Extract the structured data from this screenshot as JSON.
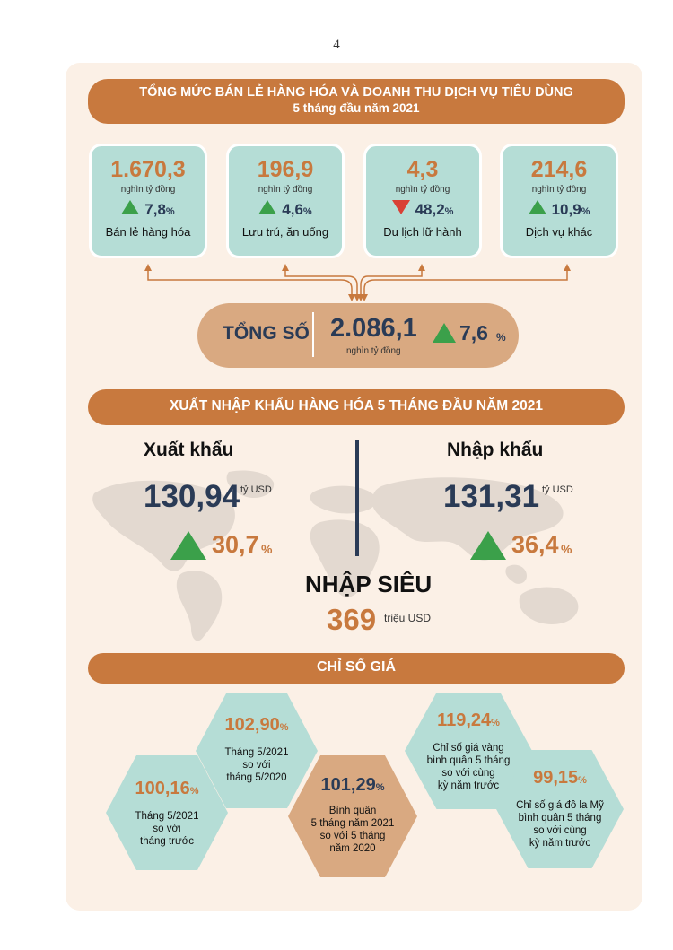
{
  "page_number": "4",
  "retail": {
    "title_line1": "TỔNG MỨC BÁN LẺ HÀNG HÓA VÀ DOANH THU DỊCH VỤ TIÊU DÙNG",
    "title_line2": "5 tháng đầu năm 2021",
    "cards": [
      {
        "value": "1.670,3",
        "unit": "nghìn tỷ đồng",
        "direction": "up",
        "change": "7,8",
        "pct": "%",
        "label": "Bán lẻ hàng hóa"
      },
      {
        "value": "196,9",
        "unit": "nghìn tỷ đồng",
        "direction": "up",
        "change": "4,6",
        "pct": "%",
        "label": "Lưu trú, ăn uống"
      },
      {
        "value": "4,3",
        "unit": "nghìn tỷ đồng",
        "direction": "down",
        "change": "48,2",
        "pct": "%",
        "label": "Du lịch lữ hành"
      },
      {
        "value": "214,6",
        "unit": "nghìn tỷ đồng",
        "direction": "up",
        "change": "10,9",
        "pct": "%",
        "label": "Dịch vụ khác"
      }
    ],
    "total": {
      "label": "TỔNG SỐ",
      "value": "2.086,1",
      "unit": "nghìn tỷ đồng",
      "change": "7,6",
      "pct": "%"
    }
  },
  "trade": {
    "title": "XUẤT NHẬP KHẨU HÀNG HÓA  5 THÁNG ĐẦU NĂM 2021",
    "export": {
      "label": "Xuất khẩu",
      "value": "130,94",
      "unit": "tỷ USD",
      "change": "30,7",
      "pct": "%"
    },
    "import": {
      "label": "Nhập khẩu",
      "value": "131,31",
      "unit": "tỷ USD",
      "change": "36,4",
      "pct": "%"
    },
    "surplus": {
      "label": "NHẬP SIÊU",
      "value": "369",
      "unit": "triệu USD"
    }
  },
  "price": {
    "title": "CHỈ SỐ GIÁ",
    "hexes": [
      {
        "value": "100,16",
        "pct": "%",
        "lines": [
          "Tháng 5/2021",
          "so với",
          "tháng trước"
        ]
      },
      {
        "value": "102,90",
        "pct": "%",
        "lines": [
          "Tháng 5/2021",
          "so với",
          "tháng 5/2020"
        ]
      },
      {
        "value": "101,29",
        "pct": "%",
        "lines": [
          "Bình quân",
          "5 tháng năm 2021",
          "so với 5 tháng",
          "năm 2020"
        ]
      },
      {
        "value": "119,24",
        "pct": "%",
        "lines": [
          "Chỉ số giá vàng",
          "bình quân 5 tháng",
          "so với cùng",
          "kỳ năm trước"
        ]
      },
      {
        "value": "99,15",
        "pct": "%",
        "lines": [
          "Chỉ số giá đô la Mỹ",
          "bình quân 5 tháng",
          "so với cùng",
          "kỳ năm trước"
        ]
      }
    ]
  },
  "colors": {
    "accent": "#c8793e",
    "teal": "#b5ddd6",
    "navy": "#2a3b56",
    "up": "#3ba04a",
    "down": "#d94035",
    "panel": "#fbf0e6"
  }
}
